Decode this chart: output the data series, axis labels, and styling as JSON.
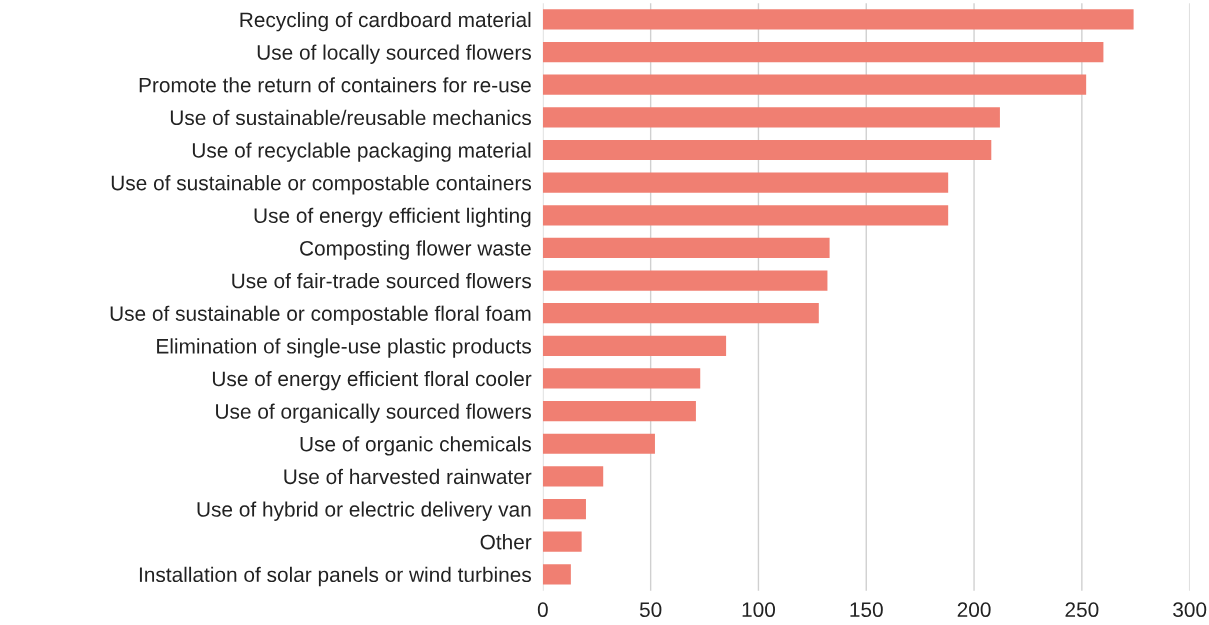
{
  "chart_data": {
    "type": "bar",
    "orientation": "horizontal",
    "categories": [
      "Recycling of cardboard material",
      "Use of locally sourced flowers",
      "Promote the return of containers for re-use",
      "Use of sustainable/reusable mechanics",
      "Use of recyclable packaging material",
      "Use of sustainable or compostable containers",
      "Use of energy efficient lighting",
      "Composting flower waste",
      "Use of fair-trade sourced flowers",
      "Use of sustainable or compostable floral foam",
      "Elimination of single-use plastic products",
      "Use of energy efficient floral cooler",
      "Use of organically sourced flowers",
      "Use of organic chemicals",
      "Use of harvested rainwater",
      "Use of hybrid or electric delivery van",
      "Other",
      "Installation of solar panels or wind turbines"
    ],
    "values": [
      274,
      260,
      252,
      212,
      208,
      188,
      188,
      133,
      132,
      128,
      85,
      73,
      71,
      52,
      28,
      20,
      18,
      13
    ],
    "color": "#f07f72",
    "xlim": [
      0,
      300
    ],
    "xticks": [
      0,
      50,
      100,
      150,
      200,
      250,
      300
    ],
    "grid": "x"
  }
}
